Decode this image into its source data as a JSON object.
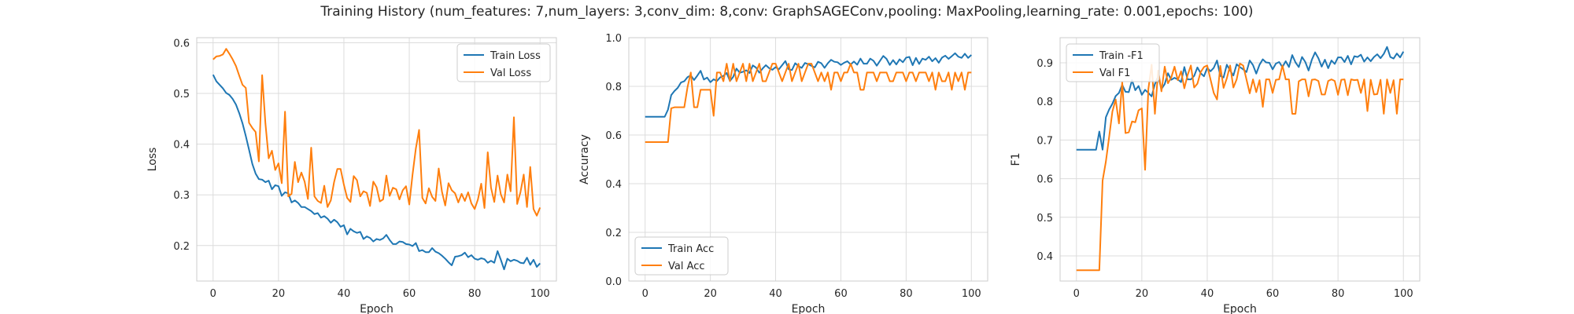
{
  "figure": {
    "title": "Training History (num_features: 7,num_layers: 3,conv_dim: 8,conv: GraphSAGEConv,pooling: MaxPooling,learning_rate: 0.001,epochs: 100)"
  },
  "colors": {
    "blue": "#1f77b4",
    "orange": "#ff7f0e",
    "grid": "#dcdcdc",
    "spine": "#cccccc"
  },
  "chart_data": [
    {
      "type": "line",
      "xlabel": "Epoch",
      "ylabel": "Loss",
      "xlim": [
        -5,
        105
      ],
      "ylim": [
        0.13,
        0.61
      ],
      "xticks": [
        0,
        20,
        40,
        60,
        80,
        100
      ],
      "yticks": [
        0.2,
        0.3,
        0.4,
        0.5,
        0.6
      ],
      "ytick_labels": [
        "0.2",
        "0.3",
        "0.4",
        "0.5",
        "0.6"
      ],
      "grid": true,
      "legend_position": "upper right",
      "series": [
        {
          "name": "Train Loss",
          "color": "#1f77b4",
          "values": [
            0.537,
            0.524,
            0.517,
            0.51,
            0.501,
            0.497,
            0.489,
            0.478,
            0.461,
            0.441,
            0.416,
            0.389,
            0.361,
            0.342,
            0.331,
            0.33,
            0.325,
            0.328,
            0.311,
            0.319,
            0.317,
            0.298,
            0.305,
            0.303,
            0.285,
            0.289,
            0.284,
            0.276,
            0.276,
            0.272,
            0.268,
            0.262,
            0.264,
            0.255,
            0.258,
            0.253,
            0.245,
            0.251,
            0.246,
            0.237,
            0.24,
            0.222,
            0.233,
            0.228,
            0.225,
            0.227,
            0.213,
            0.218,
            0.215,
            0.208,
            0.213,
            0.211,
            0.214,
            0.221,
            0.211,
            0.203,
            0.203,
            0.208,
            0.207,
            0.203,
            0.202,
            0.199,
            0.205,
            0.189,
            0.191,
            0.187,
            0.187,
            0.195,
            0.188,
            0.185,
            0.18,
            0.174,
            0.167,
            0.161,
            0.178,
            0.179,
            0.181,
            0.186,
            0.177,
            0.181,
            0.174,
            0.172,
            0.175,
            0.173,
            0.166,
            0.17,
            0.166,
            0.189,
            0.172,
            0.153,
            0.174,
            0.169,
            0.172,
            0.17,
            0.166,
            0.165,
            0.176,
            0.162,
            0.172,
            0.158,
            0.165
          ]
        },
        {
          "name": "Val Loss",
          "color": "#ff7f0e",
          "values": [
            0.567,
            0.573,
            0.574,
            0.577,
            0.588,
            0.578,
            0.567,
            0.554,
            0.535,
            0.517,
            0.511,
            0.442,
            0.432,
            0.424,
            0.366,
            0.536,
            0.441,
            0.372,
            0.387,
            0.349,
            0.362,
            0.323,
            0.464,
            0.297,
            0.302,
            0.365,
            0.325,
            0.344,
            0.326,
            0.292,
            0.393,
            0.297,
            0.288,
            0.284,
            0.318,
            0.276,
            0.289,
            0.325,
            0.351,
            0.351,
            0.32,
            0.294,
            0.286,
            0.337,
            0.329,
            0.297,
            0.307,
            0.304,
            0.278,
            0.326,
            0.315,
            0.287,
            0.291,
            0.338,
            0.298,
            0.314,
            0.311,
            0.291,
            0.309,
            0.317,
            0.281,
            0.34,
            0.391,
            0.428,
            0.294,
            0.283,
            0.313,
            0.296,
            0.288,
            0.352,
            0.306,
            0.279,
            0.323,
            0.309,
            0.303,
            0.285,
            0.302,
            0.288,
            0.305,
            0.283,
            0.272,
            0.291,
            0.322,
            0.274,
            0.384,
            0.314,
            0.286,
            0.338,
            0.301,
            0.285,
            0.34,
            0.307,
            0.453,
            0.282,
            0.305,
            0.34,
            0.276,
            0.355,
            0.272,
            0.259,
            0.275
          ]
        }
      ]
    },
    {
      "type": "line",
      "xlabel": "Epoch",
      "ylabel": "Accuracy",
      "xlim": [
        -5,
        105
      ],
      "ylim": [
        0.0,
        1.0
      ],
      "xticks": [
        0,
        20,
        40,
        60,
        80,
        100
      ],
      "yticks": [
        0.0,
        0.2,
        0.4,
        0.6,
        0.8,
        1.0
      ],
      "ytick_labels": [
        "0.0",
        "0.2",
        "0.4",
        "0.6",
        "0.8",
        "1.0"
      ],
      "grid": true,
      "legend_position": "lower left",
      "series": [
        {
          "name": "Train Acc",
          "color": "#1f77b4",
          "values": [
            0.675,
            0.675,
            0.675,
            0.675,
            0.675,
            0.675,
            0.675,
            0.704,
            0.764,
            0.781,
            0.794,
            0.816,
            0.821,
            0.838,
            0.845,
            0.826,
            0.844,
            0.864,
            0.828,
            0.836,
            0.817,
            0.829,
            0.822,
            0.837,
            0.843,
            0.855,
            0.822,
            0.839,
            0.873,
            0.856,
            0.86,
            0.866,
            0.855,
            0.886,
            0.877,
            0.856,
            0.873,
            0.887,
            0.875,
            0.868,
            0.879,
            0.87,
            0.887,
            0.904,
            0.87,
            0.867,
            0.895,
            0.883,
            0.876,
            0.896,
            0.891,
            0.884,
            0.878,
            0.901,
            0.895,
            0.876,
            0.895,
            0.909,
            0.901,
            0.899,
            0.888,
            0.897,
            0.903,
            0.89,
            0.902,
            0.889,
            0.914,
            0.893,
            0.893,
            0.914,
            0.905,
            0.885,
            0.905,
            0.925,
            0.913,
            0.888,
            0.908,
            0.89,
            0.911,
            0.899,
            0.918,
            0.921,
            0.887,
            0.917,
            0.892,
            0.914,
            0.909,
            0.922,
            0.903,
            0.916,
            0.897,
            0.918,
            0.926,
            0.913,
            0.924,
            0.936,
            0.922,
            0.917,
            0.934,
            0.917,
            0.929
          ]
        },
        {
          "name": "Val Acc",
          "color": "#ff7f0e",
          "values": [
            0.571,
            0.571,
            0.571,
            0.571,
            0.571,
            0.571,
            0.571,
            0.571,
            0.71,
            0.714,
            0.714,
            0.714,
            0.714,
            0.797,
            0.857,
            0.714,
            0.714,
            0.786,
            0.786,
            0.786,
            0.786,
            0.679,
            0.857,
            0.857,
            0.821,
            0.893,
            0.821,
            0.893,
            0.821,
            0.857,
            0.893,
            0.821,
            0.893,
            0.821,
            0.857,
            0.893,
            0.821,
            0.821,
            0.857,
            0.893,
            0.893,
            0.857,
            0.821,
            0.857,
            0.893,
            0.821,
            0.857,
            0.893,
            0.821,
            0.857,
            0.893,
            0.893,
            0.857,
            0.821,
            0.857,
            0.821,
            0.857,
            0.786,
            0.857,
            0.857,
            0.821,
            0.857,
            0.857,
            0.893,
            0.857,
            0.857,
            0.786,
            0.786,
            0.857,
            0.857,
            0.857,
            0.821,
            0.857,
            0.857,
            0.857,
            0.821,
            0.821,
            0.857,
            0.857,
            0.857,
            0.821,
            0.857,
            0.857,
            0.821,
            0.857,
            0.857,
            0.857,
            0.821,
            0.857,
            0.786,
            0.857,
            0.821,
            0.821,
            0.857,
            0.786,
            0.857,
            0.821,
            0.857,
            0.786,
            0.857,
            0.857
          ]
        }
      ]
    },
    {
      "type": "line",
      "xlabel": "Epoch",
      "ylabel": "F1",
      "xlim": [
        -5,
        105
      ],
      "ylim": [
        0.335,
        0.965
      ],
      "xticks": [
        0,
        20,
        40,
        60,
        80,
        100
      ],
      "yticks": [
        0.4,
        0.5,
        0.6,
        0.7,
        0.8,
        0.9
      ],
      "ytick_labels": [
        "0.4",
        "0.5",
        "0.6",
        "0.7",
        "0.8",
        "0.9"
      ],
      "grid": true,
      "legend_position": "upper left",
      "series": [
        {
          "name": "Train -F1",
          "color": "#1f77b4",
          "values": [
            0.675,
            0.675,
            0.675,
            0.675,
            0.675,
            0.675,
            0.675,
            0.722,
            0.675,
            0.759,
            0.779,
            0.794,
            0.814,
            0.822,
            0.843,
            0.825,
            0.824,
            0.855,
            0.829,
            0.84,
            0.817,
            0.83,
            0.822,
            0.813,
            0.845,
            0.865,
            0.832,
            0.845,
            0.873,
            0.856,
            0.861,
            0.857,
            0.85,
            0.889,
            0.857,
            0.857,
            0.866,
            0.888,
            0.873,
            0.865,
            0.887,
            0.878,
            0.887,
            0.906,
            0.866,
            0.862,
            0.895,
            0.88,
            0.867,
            0.896,
            0.889,
            0.883,
            0.876,
            0.906,
            0.894,
            0.872,
            0.895,
            0.909,
            0.901,
            0.9,
            0.883,
            0.898,
            0.902,
            0.889,
            0.904,
            0.889,
            0.92,
            0.901,
            0.889,
            0.915,
            0.902,
            0.88,
            0.908,
            0.927,
            0.912,
            0.89,
            0.908,
            0.886,
            0.906,
            0.897,
            0.914,
            0.914,
            0.902,
            0.918,
            0.896,
            0.917,
            0.915,
            0.921,
            0.903,
            0.914,
            0.904,
            0.915,
            0.922,
            0.912,
            0.923,
            0.941,
            0.915,
            0.911,
            0.924,
            0.914,
            0.929
          ]
        },
        {
          "name": "Val F1",
          "color": "#ff7f0e",
          "values": [
            0.363,
            0.363,
            0.363,
            0.363,
            0.363,
            0.363,
            0.363,
            0.363,
            0.595,
            0.644,
            0.708,
            0.774,
            0.805,
            0.743,
            0.85,
            0.718,
            0.72,
            0.748,
            0.746,
            0.777,
            0.782,
            0.623,
            0.832,
            0.895,
            0.768,
            0.88,
            0.826,
            0.89,
            0.847,
            0.862,
            0.89,
            0.855,
            0.878,
            0.834,
            0.868,
            0.893,
            0.836,
            0.846,
            0.876,
            0.889,
            0.893,
            0.857,
            0.822,
            0.805,
            0.892,
            0.835,
            0.86,
            0.893,
            0.836,
            0.857,
            0.898,
            0.893,
            0.857,
            0.821,
            0.857,
            0.824,
            0.855,
            0.786,
            0.857,
            0.857,
            0.822,
            0.856,
            0.857,
            0.893,
            0.857,
            0.857,
            0.768,
            0.768,
            0.852,
            0.857,
            0.857,
            0.813,
            0.856,
            0.857,
            0.853,
            0.818,
            0.818,
            0.853,
            0.857,
            0.853,
            0.817,
            0.856,
            0.857,
            0.816,
            0.857,
            0.855,
            0.856,
            0.822,
            0.857,
            0.775,
            0.856,
            0.818,
            0.819,
            0.856,
            0.768,
            0.857,
            0.822,
            0.855,
            0.768,
            0.857,
            0.857
          ]
        }
      ]
    }
  ]
}
